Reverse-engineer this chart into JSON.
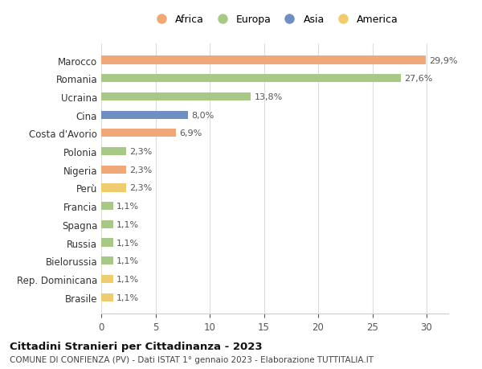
{
  "countries": [
    "Marocco",
    "Romania",
    "Ucraina",
    "Cina",
    "Costa d'Avorio",
    "Polonia",
    "Nigeria",
    "Perù",
    "Francia",
    "Spagna",
    "Russia",
    "Bielorussia",
    "Rep. Dominicana",
    "Brasile"
  ],
  "values": [
    29.9,
    27.6,
    13.8,
    8.0,
    6.9,
    2.3,
    2.3,
    2.3,
    1.1,
    1.1,
    1.1,
    1.1,
    1.1,
    1.1
  ],
  "labels": [
    "29,9%",
    "27,6%",
    "13,8%",
    "8,0%",
    "6,9%",
    "2,3%",
    "2,3%",
    "2,3%",
    "1,1%",
    "1,1%",
    "1,1%",
    "1,1%",
    "1,1%",
    "1,1%"
  ],
  "continents": [
    "Africa",
    "Europa",
    "Europa",
    "Asia",
    "Africa",
    "Europa",
    "Africa",
    "America",
    "Europa",
    "Europa",
    "Europa",
    "Europa",
    "America",
    "America"
  ],
  "colors": {
    "Africa": "#F0A878",
    "Europa": "#A8C888",
    "Asia": "#6E8EC4",
    "America": "#F0CC70"
  },
  "legend_order": [
    "Africa",
    "Europa",
    "Asia",
    "America"
  ],
  "title": "Cittadini Stranieri per Cittadinanza - 2023",
  "subtitle": "COMUNE DI CONFIENZA (PV) - Dati ISTAT 1° gennaio 2023 - Elaborazione TUTTITALIA.IT",
  "xlim": [
    0,
    32
  ],
  "xticks": [
    0,
    5,
    10,
    15,
    20,
    25,
    30
  ],
  "background_color": "#ffffff",
  "grid_color": "#dddddd"
}
